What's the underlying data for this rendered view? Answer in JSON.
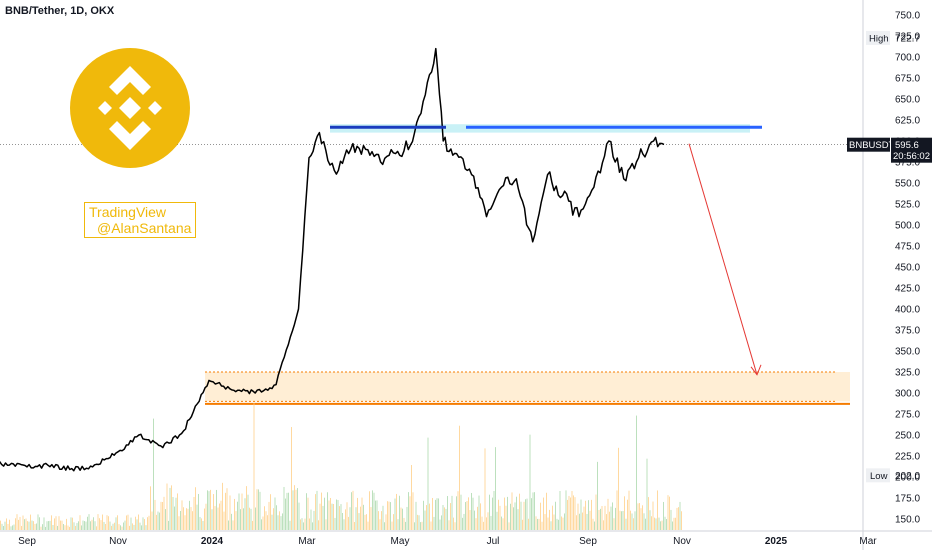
{
  "header": {
    "title": "BNB/Tether, 1D, OKX"
  },
  "watermark": {
    "line1": "TradingView",
    "line2": "@AlanSantana",
    "logo_color": "#f0b90b"
  },
  "price_axis": {
    "labels": [
      "750.0",
      "725.0",
      "700.0",
      "675.0",
      "650.0",
      "625.0",
      "600.0",
      "575.0",
      "550.0",
      "525.0",
      "500.0",
      "475.0",
      "450.0",
      "425.0",
      "400.0",
      "375.0",
      "350.0",
      "325.0",
      "300.0",
      "275.0",
      "250.0",
      "225.0",
      "200.0",
      "175.0",
      "150.0"
    ],
    "high_label": "High",
    "high_value": "722.7",
    "low_label": "Low",
    "low_value": "202.0",
    "symbol_tag": "BNBUSDT",
    "price_tag": "595.6",
    "countdown_tag": "20:56:02"
  },
  "time_axis": {
    "labels": [
      "Sep",
      "Nov",
      "2024",
      "Mar",
      "May",
      "Jul",
      "Sep",
      "Nov",
      "2025",
      "Mar"
    ]
  },
  "colors": {
    "price_line": "#000000",
    "resistance": "#2962ff",
    "resistance_zone": "#b2ebf2",
    "support_zone": "#ffe0b2",
    "support_line": "#f57c00",
    "arrow": "#e53935",
    "volume_up": "#a5d6a7",
    "volume_down": "#ffcc80"
  },
  "chart_data": {
    "type": "line",
    "title": "BNB/Tether, 1D, OKX",
    "series": [
      {
        "name": "BNBUSDT",
        "x": [
          "2023-08-01",
          "2023-08-15",
          "2023-09-01",
          "2023-09-15",
          "2023-10-01",
          "2023-10-15",
          "2023-11-01",
          "2023-11-15",
          "2023-12-01",
          "2023-12-15",
          "2024-01-01",
          "2024-01-15",
          "2024-02-01",
          "2024-02-15",
          "2024-03-01",
          "2024-03-08",
          "2024-03-15",
          "2024-03-25",
          "2024-04-05",
          "2024-04-15",
          "2024-04-25",
          "2024-05-05",
          "2024-05-15",
          "2024-05-25",
          "2024-06-01",
          "2024-06-06",
          "2024-06-15",
          "2024-06-25",
          "2024-07-05",
          "2024-07-15",
          "2024-07-25",
          "2024-08-05",
          "2024-08-15",
          "2024-08-25",
          "2024-09-05",
          "2024-09-15",
          "2024-09-25",
          "2024-10-05",
          "2024-10-15",
          "2024-10-25",
          "2024-11-01"
        ],
        "values": [
          222,
          215,
          212,
          214,
          210,
          212,
          230,
          250,
          235,
          255,
          315,
          305,
          300,
          310,
          400,
          580,
          610,
          565,
          590,
          590,
          575,
          585,
          595,
          655,
          710,
          600,
          585,
          560,
          510,
          545,
          555,
          480,
          560,
          535,
          510,
          545,
          600,
          555,
          580,
          600,
          596
        ]
      }
    ],
    "ylim": [
      130,
      760
    ],
    "high": 722.7,
    "low": 202.0,
    "last": 595.6,
    "annotations": {
      "resistance_level": 620,
      "resistance_zone": [
        610,
        620
      ],
      "support_zone": [
        290,
        325
      ],
      "support_line": 287,
      "projection_target": 305
    },
    "grid": false
  }
}
